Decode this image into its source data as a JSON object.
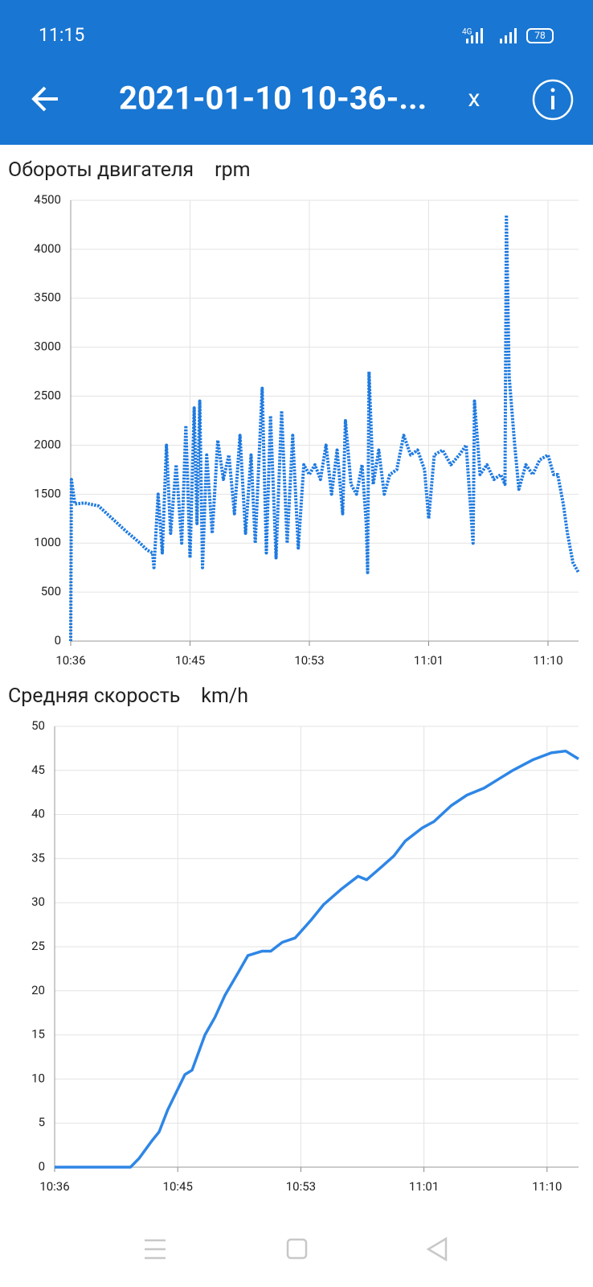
{
  "status_bar": {
    "time": "11:15",
    "network": "4G",
    "battery": "78"
  },
  "app_bar": {
    "title": "2021-01-10 10-36-...",
    "close": "x"
  },
  "chart_data": [
    {
      "type": "line",
      "title": "Обороты двигателя",
      "y_label": "rpm",
      "color": "#1e7ae0",
      "dotted": true,
      "grid": true,
      "x": [
        636.0,
        636.05,
        636.3,
        637,
        638,
        639,
        640,
        641,
        641.5,
        641.9,
        642.0,
        642.3,
        642.6,
        642.9,
        643.2,
        643.6,
        644.0,
        644.3,
        644.6,
        644.9,
        645.1,
        645.3,
        645.5,
        645.8,
        646.2,
        646.6,
        647.0,
        647.4,
        647.8,
        648.2,
        648.6,
        649.0,
        649.3,
        649.8,
        650.1,
        650.4,
        650.8,
        651.2,
        651.6,
        652.0,
        652.4,
        652.8,
        653.2,
        653.6,
        654.0,
        654.4,
        654.8,
        655.2,
        655.6,
        655.8,
        656.2,
        656.6,
        657.0,
        657.3,
        657.4,
        657.5,
        657.8,
        658.2,
        658.6,
        659.0,
        659.5,
        660.0,
        660.5,
        661.0,
        661.5,
        661.8,
        662.2,
        662.8,
        663.4,
        664.0,
        664.5,
        665.0,
        665.1,
        665.5,
        666.0,
        666.5,
        667.0,
        667.3,
        667.4,
        667.6,
        668.0,
        668.3,
        668.8,
        669.3,
        669.8,
        670.4,
        670.8,
        671.1,
        671.5,
        671.8,
        672.2,
        672.6
      ],
      "values": [
        0,
        1650,
        1400,
        1410,
        1380,
        1250,
        1120,
        1000,
        930,
        900,
        750,
        1500,
        900,
        2000,
        1100,
        1800,
        1000,
        2200,
        850,
        2380,
        1200,
        2450,
        750,
        1900,
        1100,
        2050,
        1650,
        1900,
        1300,
        2100,
        1100,
        1900,
        1000,
        2580,
        900,
        2300,
        850,
        2350,
        1000,
        2100,
        950,
        1800,
        1700,
        1800,
        1650,
        2000,
        1500,
        1950,
        1300,
        2250,
        1600,
        1500,
        1800,
        1200,
        700,
        2750,
        1600,
        1950,
        1500,
        1700,
        1750,
        2100,
        1900,
        1950,
        1750,
        1250,
        1900,
        1950,
        1800,
        1900,
        2000,
        1000,
        2450,
        1700,
        1800,
        1650,
        1700,
        1600,
        4350,
        2700,
        2000,
        1550,
        1800,
        1700,
        1850,
        1900,
        1700,
        1700,
        1400,
        1100,
        800,
        700
      ],
      "xlim": [
        636,
        672.6
      ],
      "xticks": [
        {
          "value": 636,
          "label": "10:36"
        },
        {
          "value": 644.6,
          "label": "10:45"
        },
        {
          "value": 653.2,
          "label": "10:53"
        },
        {
          "value": 661.8,
          "label": "11:01"
        },
        {
          "value": 670.4,
          "label": "11:10"
        }
      ],
      "ylim": [
        0,
        4500
      ],
      "yticks": [
        0,
        500,
        1000,
        1500,
        2000,
        2500,
        3000,
        3500,
        4000,
        4500
      ]
    },
    {
      "type": "line",
      "title": "Средняя скорость",
      "y_label": "km/h",
      "color": "#2e86e6",
      "dotted": false,
      "grid": true,
      "x": [
        636.0,
        641.3,
        641.9,
        642.8,
        643.3,
        643.9,
        645.1,
        645.6,
        646.5,
        647.2,
        647.9,
        648.8,
        649.5,
        650.5,
        651.1,
        651.9,
        652.8,
        653.9,
        654.8,
        656.0,
        657.2,
        657.8,
        658.8,
        659.7,
        660.5,
        661.7,
        662.5,
        663.7,
        664.8,
        666.0,
        667.2,
        668.0,
        669.4,
        670.7,
        671.7,
        672.6
      ],
      "values": [
        0,
        0,
        1,
        3,
        4,
        6.5,
        10.5,
        11,
        15,
        17,
        19.5,
        22,
        24,
        24.5,
        24.5,
        25.5,
        26,
        28,
        29.8,
        31.5,
        33,
        32.6,
        34,
        35.3,
        37,
        38.5,
        39.2,
        41,
        42.2,
        43,
        44.2,
        45,
        46.2,
        47,
        47.2,
        46.3
      ],
      "xlim": [
        636,
        672.6
      ],
      "xticks": [
        {
          "value": 636,
          "label": "10:36"
        },
        {
          "value": 644.6,
          "label": "10:45"
        },
        {
          "value": 653.2,
          "label": "10:53"
        },
        {
          "value": 661.8,
          "label": "11:01"
        },
        {
          "value": 670.4,
          "label": "11:10"
        }
      ],
      "ylim": [
        0,
        50
      ],
      "yticks": [
        0,
        5,
        10,
        15,
        20,
        25,
        30,
        35,
        40,
        45,
        50
      ]
    }
  ]
}
